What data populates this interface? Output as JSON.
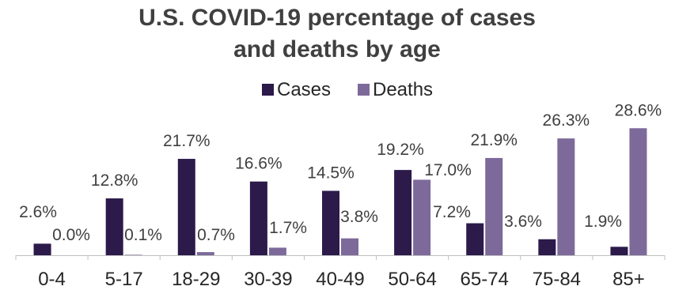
{
  "chart_data": {
    "type": "bar",
    "title_lines": [
      "U.S. COVID-19 percentage of cases",
      "and deaths by age"
    ],
    "categories": [
      "0-4",
      "5-17",
      "18-29",
      "30-39",
      "40-49",
      "50-64",
      "65-74",
      "75-84",
      "85+"
    ],
    "series": [
      {
        "name": "Cases",
        "color": "#2b1a4a",
        "values": [
          2.6,
          12.8,
          21.7,
          16.6,
          14.5,
          19.2,
          7.2,
          3.6,
          1.9
        ],
        "labels": [
          "2.6%",
          "12.8%",
          "21.7%",
          "16.6%",
          "14.5%",
          "19.2%",
          "7.2%",
          "3.6%",
          "1.9%"
        ]
      },
      {
        "name": "Deaths",
        "color": "#7d6a9a",
        "values": [
          0.0,
          0.1,
          0.7,
          1.7,
          3.8,
          17.0,
          21.9,
          26.3,
          28.6
        ],
        "labels": [
          "0.0%",
          "0.1%",
          "0.7%",
          "1.7%",
          "3.8%",
          "17.0%",
          "21.9%",
          "26.3%",
          "28.6%"
        ]
      }
    ],
    "ylim": [
      0,
      30
    ],
    "grid": false,
    "legend": "top-center"
  }
}
